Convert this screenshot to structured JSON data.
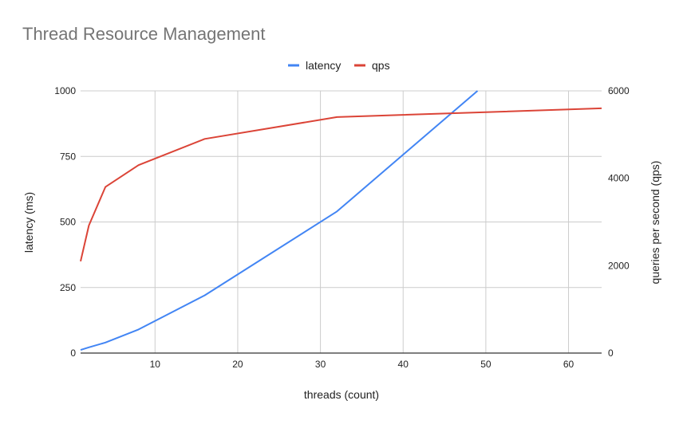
{
  "chart_data": {
    "type": "line",
    "title": "Thread Resource Management",
    "xlabel": "threads (count)",
    "ylabel_left": "latency (ms)",
    "ylabel_right": "queries per second (qps)",
    "xlim": [
      1,
      64
    ],
    "ylim_left": [
      0,
      1000
    ],
    "ylim_right": [
      0,
      6000
    ],
    "x_ticks": [
      10,
      20,
      30,
      40,
      50,
      60
    ],
    "y_ticks_left": [
      0,
      250,
      500,
      750,
      1000
    ],
    "y_ticks_right": [
      0,
      2000,
      4000,
      6000
    ],
    "grid": true,
    "legend_position": "top",
    "series": [
      {
        "name": "latency",
        "axis": "left",
        "color": "#4285f4",
        "x": [
          1,
          2,
          4,
          8,
          16,
          32,
          49
        ],
        "y": [
          12,
          22,
          40,
          90,
          220,
          540,
          1000
        ]
      },
      {
        "name": "qps",
        "axis": "right",
        "color": "#db4437",
        "x": [
          1,
          2,
          4,
          8,
          16,
          32,
          64
        ],
        "y": [
          2100,
          2920,
          3800,
          4300,
          4900,
          5400,
          5600
        ]
      }
    ]
  }
}
